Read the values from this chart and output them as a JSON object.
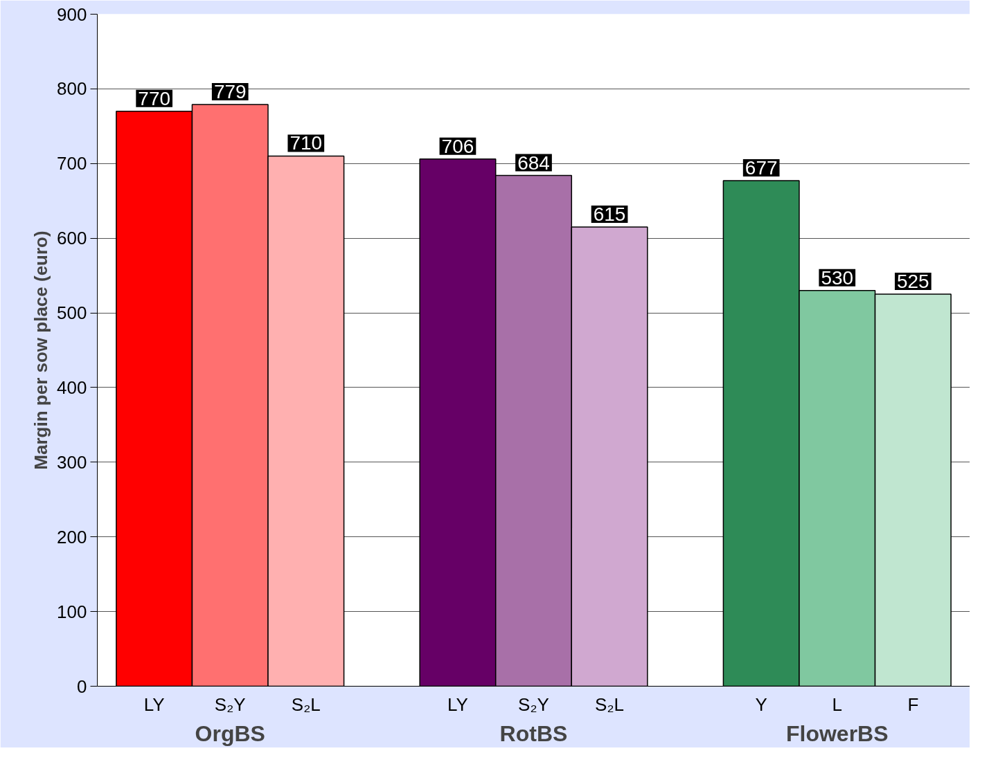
{
  "chart_data": {
    "type": "bar",
    "ylabel": "Margin per sow place (euro)",
    "categories": [
      "LY",
      "S₂Y",
      "S₂L",
      null,
      "LY",
      "S₂Y",
      "S₂L",
      null,
      "Y",
      "L",
      "F"
    ],
    "values": [
      770,
      779,
      710,
      null,
      706,
      684,
      615,
      null,
      677,
      530,
      525
    ],
    "colors": [
      "#ff0000",
      "#ff7070",
      "#ffb0b0",
      null,
      "#660066",
      "#a870a8",
      "#d0a8d0",
      null,
      "#2e8b57",
      "#80c8a0",
      "#c0e6d0"
    ],
    "ylim": [
      0,
      900
    ],
    "yticks": [
      0,
      100,
      200,
      300,
      400,
      500,
      600,
      700,
      800,
      900
    ],
    "grid": "y",
    "data_labels": true,
    "annotations": [
      "OrgBS",
      "RotBS",
      "FlowerBS"
    ]
  }
}
